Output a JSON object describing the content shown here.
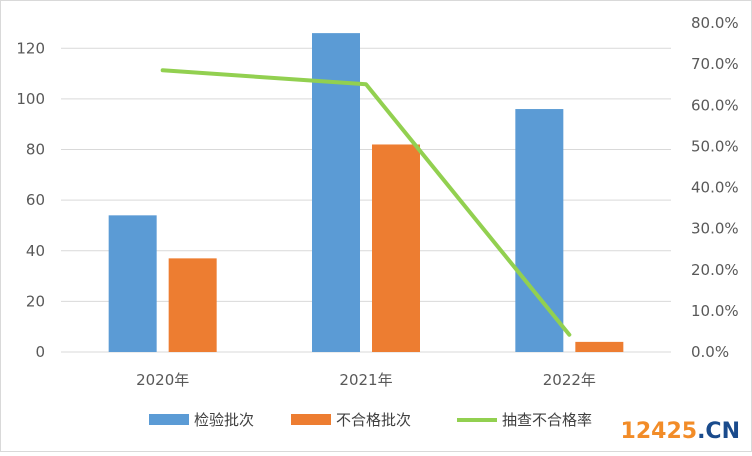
{
  "chart_data": {
    "type": "bar",
    "categories": [
      "2020年",
      "2021年",
      "2022年"
    ],
    "series": [
      {
        "name": "检验批次",
        "type": "bar",
        "axis": "left",
        "values": [
          54,
          126,
          96
        ],
        "color": "#5b9bd5"
      },
      {
        "name": "不合格批次",
        "type": "bar",
        "axis": "left",
        "values": [
          37,
          82,
          4
        ],
        "color": "#ed7d31"
      },
      {
        "name": "抽查不合格率",
        "type": "line",
        "axis": "right",
        "values": [
          0.685,
          0.651,
          0.042
        ],
        "color": "#92d050"
      }
    ],
    "ylim": [
      0,
      130
    ],
    "yticks": [
      "0",
      "20",
      "40",
      "60",
      "80",
      "100",
      "120"
    ],
    "y2lim": [
      0,
      0.8
    ],
    "y2ticks": [
      "0.0%",
      "10.0%",
      "20.0%",
      "30.0%",
      "40.0%",
      "50.0%",
      "60.0%",
      "70.0%",
      "80.0%"
    ],
    "grid": true,
    "legend": "bottom"
  },
  "watermark": {
    "number": "12425",
    "domain": ".CN"
  }
}
